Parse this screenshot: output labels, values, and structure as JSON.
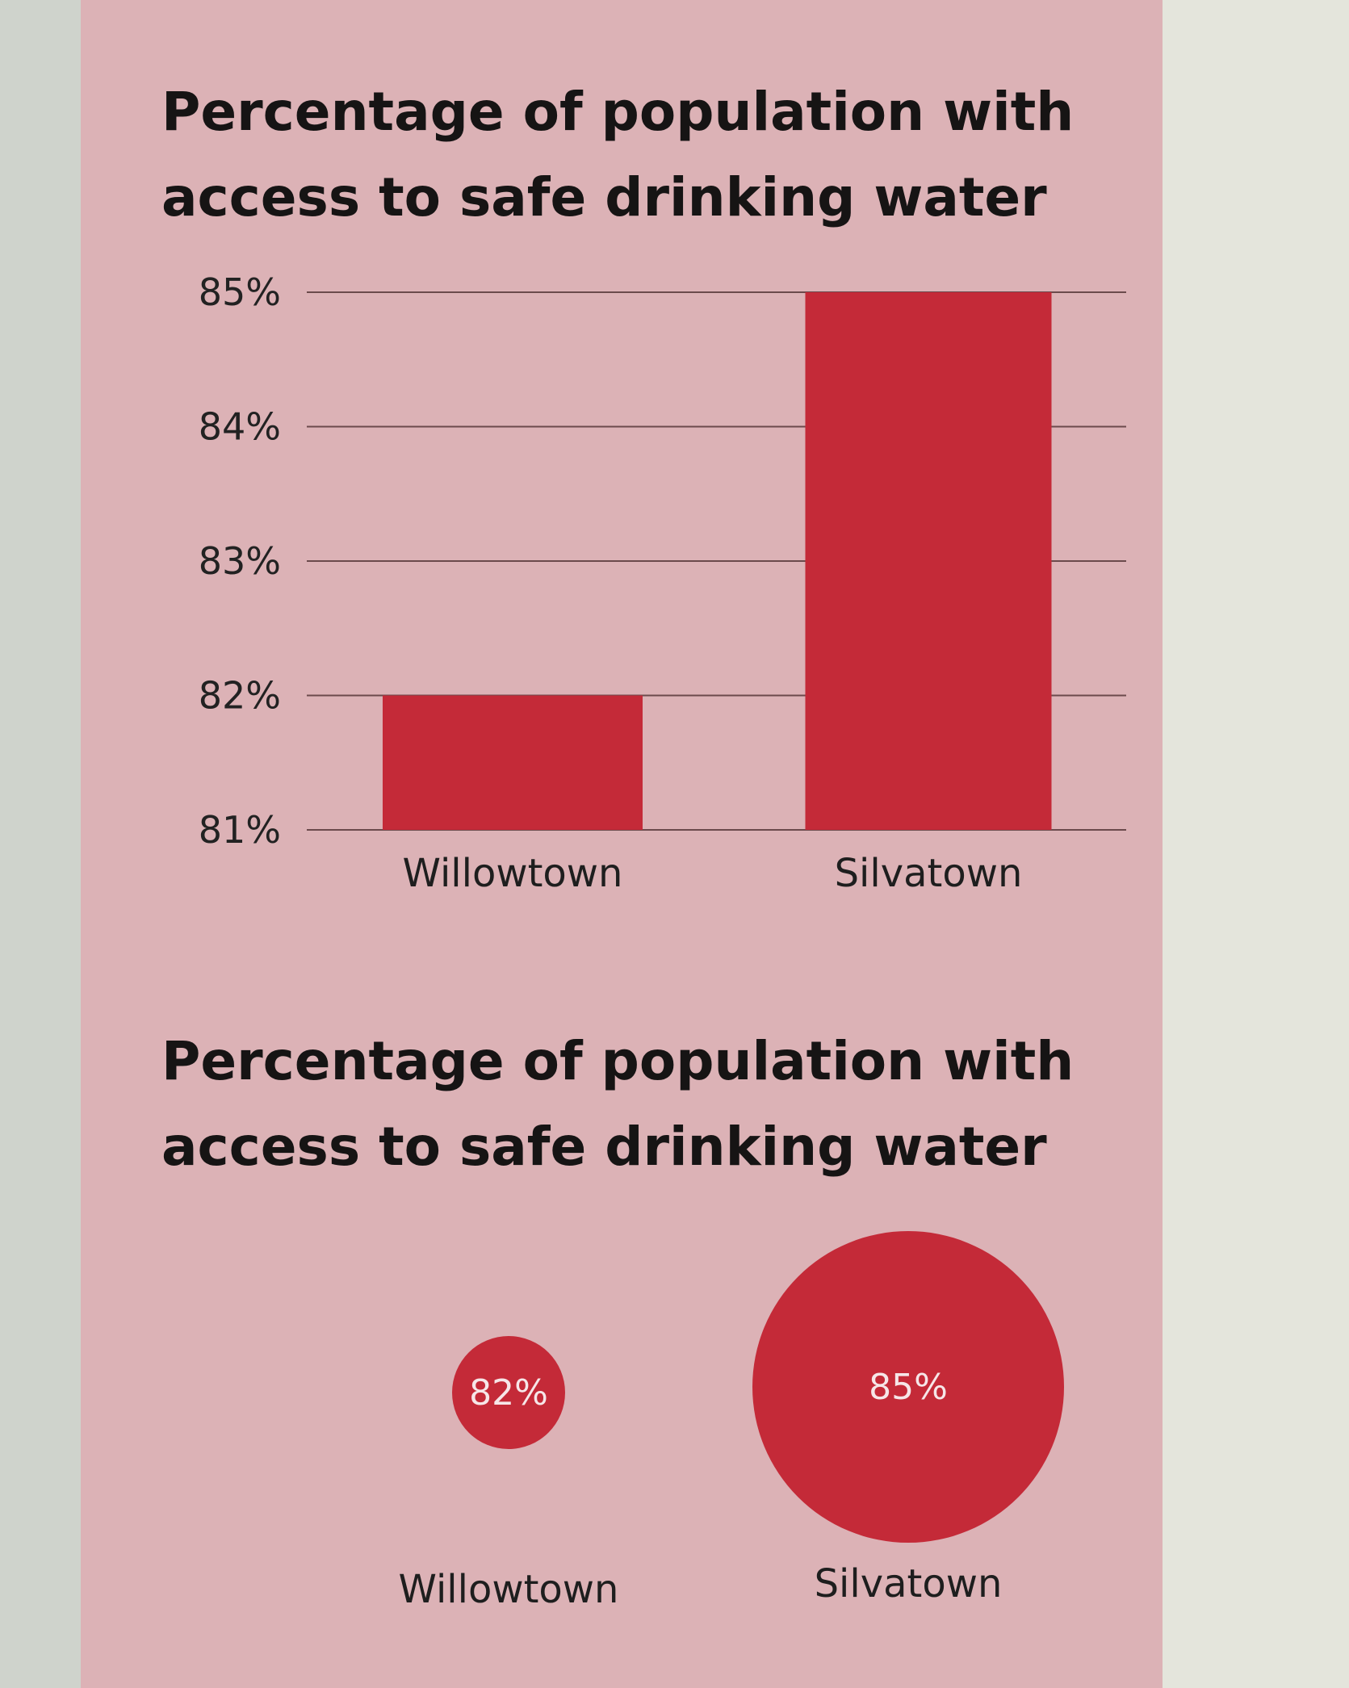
{
  "chart_data": [
    {
      "type": "bar",
      "title": "Percentage of population with\naccess to safe drinking water",
      "categories": [
        "Willowtown",
        "Silvatown"
      ],
      "values": [
        82,
        85
      ],
      "ylim": [
        81,
        85
      ],
      "yticks": [
        "85%",
        "84%",
        "83%",
        "82%",
        "81%"
      ],
      "ytick_values": [
        85,
        84,
        83,
        82,
        81
      ],
      "grid": true,
      "bar_color": "#c42a38",
      "xlabel": "",
      "ylabel": ""
    },
    {
      "type": "bubble",
      "title": "Percentage of population with\naccess to safe drinking water",
      "categories": [
        "Willowtown",
        "Silvatown"
      ],
      "values": [
        82,
        85
      ],
      "data_labels": [
        "82%",
        "85%"
      ],
      "bubble_color": "#c42a38"
    }
  ]
}
